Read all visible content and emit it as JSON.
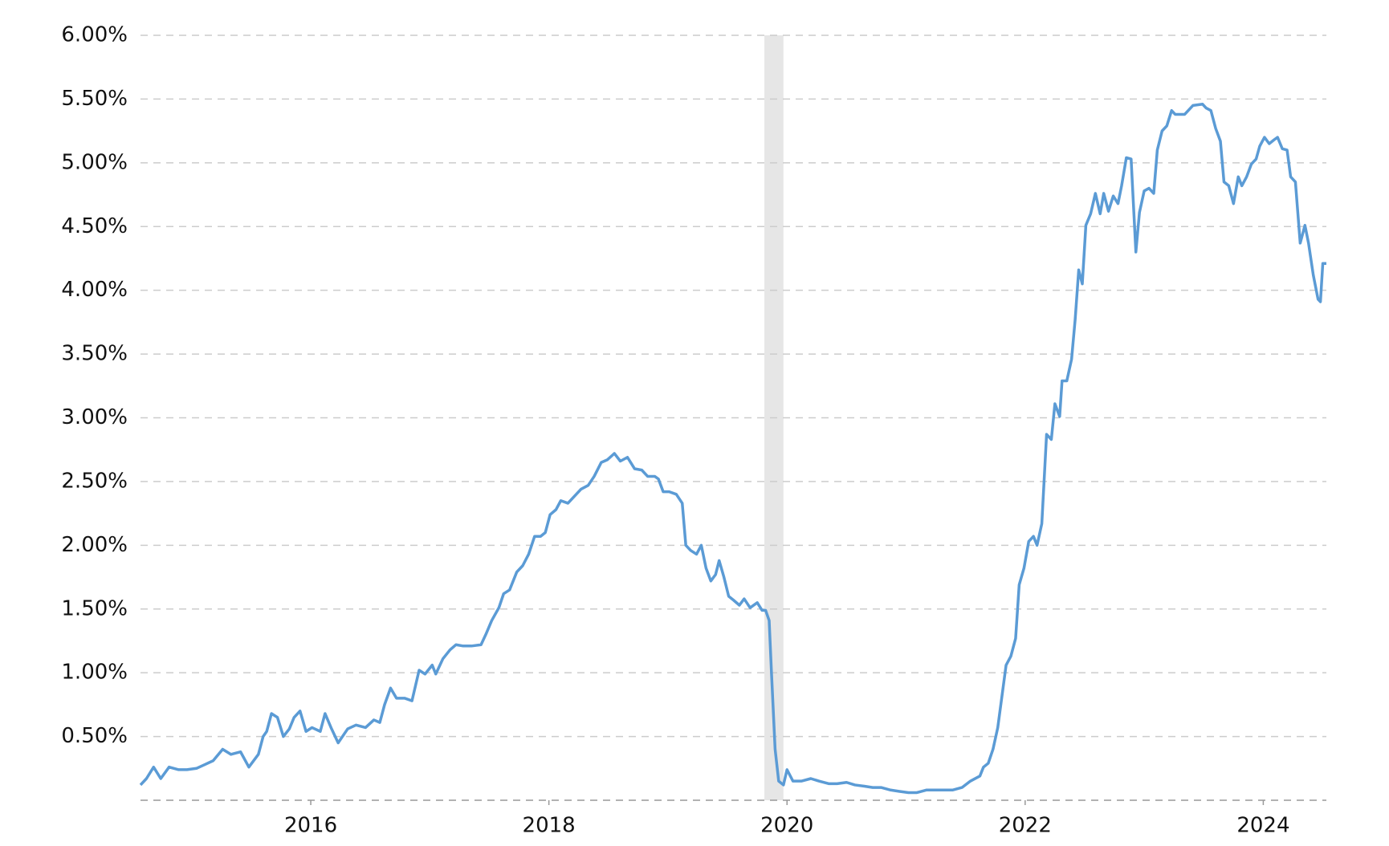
{
  "chart_data": {
    "type": "line",
    "x": [
      2014.57,
      2014.62,
      2014.68,
      2014.74,
      2014.81,
      2014.89,
      2014.96,
      2015.04,
      2015.11,
      2015.18,
      2015.26,
      2015.33,
      2015.41,
      2015.48,
      2015.56,
      2015.6,
      2015.63,
      2015.67,
      2015.72,
      2015.77,
      2015.82,
      2015.86,
      2015.91,
      2015.96,
      2016.01,
      2016.08,
      2016.12,
      2016.17,
      2016.23,
      2016.31,
      2016.38,
      2016.46,
      2016.53,
      2016.58,
      2016.62,
      2016.67,
      2016.72,
      2016.79,
      2016.85,
      2016.91,
      2016.96,
      2017.02,
      2017.05,
      2017.11,
      2017.17,
      2017.22,
      2017.28,
      2017.35,
      2017.43,
      2017.47,
      2017.52,
      2017.58,
      2017.62,
      2017.67,
      2017.73,
      2017.78,
      2017.83,
      2017.88,
      2017.93,
      2017.97,
      2018.01,
      2018.06,
      2018.1,
      2018.16,
      2018.21,
      2018.27,
      2018.33,
      2018.38,
      2018.44,
      2018.49,
      2018.55,
      2018.6,
      2018.66,
      2018.72,
      2018.78,
      2018.83,
      2018.89,
      2018.92,
      2018.96,
      2019.01,
      2019.07,
      2019.12,
      2019.15,
      2019.19,
      2019.24,
      2019.28,
      2019.32,
      2019.36,
      2019.4,
      2019.43,
      2019.47,
      2019.51,
      2019.55,
      2019.6,
      2019.64,
      2019.69,
      2019.75,
      2019.79,
      2019.82,
      2019.85,
      2019.87,
      2019.9,
      2019.93,
      2019.97,
      2020.0,
      2020.05,
      2020.12,
      2020.2,
      2020.27,
      2020.35,
      2020.42,
      2020.5,
      2020.57,
      2020.65,
      2020.72,
      2020.79,
      2020.87,
      2020.94,
      2021.02,
      2021.09,
      2021.17,
      2021.24,
      2021.32,
      2021.39,
      2021.47,
      2021.54,
      2021.62,
      2021.65,
      2021.69,
      2021.73,
      2021.77,
      2021.8,
      2021.84,
      2021.88,
      2021.92,
      2021.95,
      2021.99,
      2022.03,
      2022.07,
      2022.1,
      2022.14,
      2022.18,
      2022.22,
      2022.25,
      2022.29,
      2022.31,
      2022.35,
      2022.39,
      2022.42,
      2022.45,
      2022.48,
      2022.51,
      2022.55,
      2022.59,
      2022.63,
      2022.66,
      2022.7,
      2022.74,
      2022.78,
      2022.81,
      2022.85,
      2022.89,
      2022.93,
      2022.96,
      2023.0,
      2023.04,
      2023.08,
      2023.11,
      2023.15,
      2023.19,
      2023.23,
      2023.26,
      2023.34,
      2023.41,
      2023.49,
      2023.52,
      2023.56,
      2023.6,
      2023.64,
      2023.67,
      2023.71,
      2023.75,
      2023.79,
      2023.82,
      2023.86,
      2023.9,
      2023.94,
      2023.97,
      2024.01,
      2024.05,
      2024.09,
      2024.12,
      2024.16,
      2024.2,
      2024.23,
      2024.27,
      2024.31,
      2024.35,
      2024.38,
      2024.42,
      2024.46,
      2024.48,
      2024.5,
      2024.53
    ],
    "series": [
      {
        "color": "#5b9bd5",
        "values": [
          0.12,
          0.17,
          0.26,
          0.17,
          0.26,
          0.24,
          0.24,
          0.25,
          0.28,
          0.31,
          0.4,
          0.36,
          0.38,
          0.26,
          0.36,
          0.5,
          0.54,
          0.68,
          0.65,
          0.5,
          0.56,
          0.65,
          0.7,
          0.54,
          0.57,
          0.54,
          0.68,
          0.57,
          0.45,
          0.56,
          0.59,
          0.57,
          0.63,
          0.61,
          0.75,
          0.88,
          0.8,
          0.8,
          0.78,
          1.02,
          0.99,
          1.06,
          0.99,
          1.11,
          1.18,
          1.22,
          1.21,
          1.21,
          1.22,
          1.3,
          1.41,
          1.51,
          1.62,
          1.65,
          1.79,
          1.84,
          1.93,
          2.07,
          2.07,
          2.1,
          2.24,
          2.28,
          2.35,
          2.33,
          2.38,
          2.44,
          2.47,
          2.54,
          2.65,
          2.67,
          2.72,
          2.66,
          2.69,
          2.6,
          2.59,
          2.54,
          2.54,
          2.52,
          2.42,
          2.42,
          2.4,
          2.33,
          2.0,
          1.96,
          1.93,
          2.0,
          1.82,
          1.72,
          1.77,
          1.88,
          1.75,
          1.6,
          1.57,
          1.53,
          1.58,
          1.51,
          1.55,
          1.49,
          1.49,
          1.41,
          0.99,
          0.4,
          0.15,
          0.12,
          0.24,
          0.15,
          0.15,
          0.17,
          0.15,
          0.13,
          0.13,
          0.14,
          0.12,
          0.11,
          0.1,
          0.1,
          0.08,
          0.07,
          0.06,
          0.06,
          0.08,
          0.08,
          0.08,
          0.08,
          0.1,
          0.15,
          0.19,
          0.26,
          0.29,
          0.4,
          0.57,
          0.78,
          1.06,
          1.13,
          1.27,
          1.69,
          1.82,
          2.03,
          2.07,
          2.0,
          2.17,
          2.87,
          2.83,
          3.11,
          3.01,
          3.29,
          3.29,
          3.46,
          3.77,
          4.16,
          4.05,
          4.51,
          4.6,
          4.76,
          4.6,
          4.76,
          4.62,
          4.74,
          4.68,
          4.82,
          5.04,
          5.03,
          4.3,
          4.61,
          4.78,
          4.8,
          4.76,
          5.1,
          5.25,
          5.29,
          5.41,
          5.38,
          5.38,
          5.45,
          5.46,
          5.43,
          5.41,
          5.27,
          5.17,
          4.85,
          4.82,
          4.68,
          4.89,
          4.82,
          4.89,
          4.99,
          5.03,
          5.13,
          5.2,
          5.15,
          5.18,
          5.2,
          5.11,
          5.1,
          4.89,
          4.85,
          4.37,
          4.51,
          4.37,
          4.12,
          3.93,
          3.91,
          4.21,
          4.21
        ]
      }
    ],
    "xlim": [
      2014.57,
      2024.53
    ],
    "xticks": [
      2016,
      2018,
      2020,
      2022,
      2024
    ],
    "ylim": [
      0,
      6
    ],
    "yticks": [
      {
        "value": 0.5,
        "label": "0.50%"
      },
      {
        "value": 1,
        "label": "1.00%"
      },
      {
        "value": 1.5,
        "label": "1.50%"
      },
      {
        "value": 2,
        "label": "2.00%"
      },
      {
        "value": 2.5,
        "label": "2.50%"
      },
      {
        "value": 3,
        "label": "3.00%"
      },
      {
        "value": 3.5,
        "label": "3.50%"
      },
      {
        "value": 4,
        "label": "4.00%"
      },
      {
        "value": 4.5,
        "label": "4.50%"
      },
      {
        "value": 5,
        "label": "5.00%"
      },
      {
        "value": 5.5,
        "label": "5.50%"
      },
      {
        "value": 6,
        "label": "6.00%"
      }
    ],
    "grid": true,
    "shaded_regions": [
      {
        "x": [
          2019.81,
          2019.97
        ],
        "color": "#e6e6e6"
      }
    ]
  }
}
